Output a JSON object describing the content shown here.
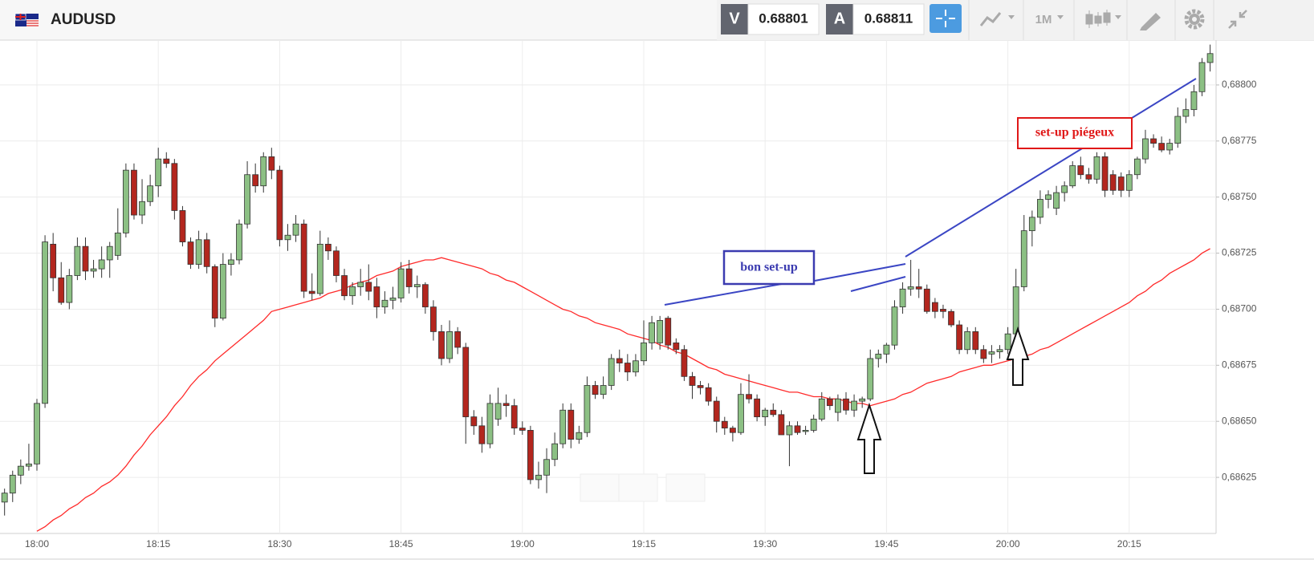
{
  "header": {
    "symbol": "AUDUSD",
    "sell": {
      "label": "V",
      "price": 0.68801
    },
    "buy": {
      "label": "A",
      "price": 0.68811
    },
    "timeframe": "1M"
  },
  "chart_data": {
    "type": "candlestick",
    "categories": [
      null,
      null,
      null,
      null,
      "18:00",
      null,
      null,
      null,
      null,
      null,
      null,
      null,
      null,
      null,
      null,
      null,
      null,
      null,
      null,
      "18:15",
      null,
      null,
      null,
      null,
      null,
      null,
      null,
      null,
      null,
      null,
      null,
      null,
      null,
      null,
      "18:30",
      null,
      null,
      null,
      null,
      null,
      null,
      null,
      null,
      null,
      null,
      null,
      null,
      null,
      null,
      "18:45",
      null,
      null,
      null,
      null,
      null,
      null,
      null,
      null,
      null,
      null,
      null,
      null,
      null,
      null,
      "19:00",
      null,
      null,
      null,
      null,
      null,
      null,
      null,
      null,
      null,
      null,
      null,
      null,
      null,
      null,
      "19:15",
      null,
      null,
      null,
      null,
      null,
      null,
      null,
      null,
      null,
      null,
      null,
      null,
      null,
      null,
      "19:30",
      null,
      null,
      null,
      null,
      null,
      null,
      null,
      null,
      null,
      null,
      null,
      null,
      null,
      null,
      "19:45",
      null,
      null,
      null,
      null,
      null,
      null,
      null,
      null,
      null,
      null,
      null,
      null,
      null,
      null,
      "20:00",
      null,
      null,
      null,
      null,
      null,
      null,
      null,
      null,
      null,
      null,
      null,
      null,
      null,
      null,
      "20:15",
      null,
      null,
      null,
      null,
      null,
      null,
      null,
      null,
      null,
      null
    ],
    "open": [
      0.68614,
      0.68618,
      0.68626,
      0.6863,
      0.68631,
      0.68658,
      0.68729,
      0.68714,
      0.68703,
      0.68715,
      0.68728,
      0.68717,
      0.68718,
      0.68722,
      0.68724,
      0.68734,
      0.68762,
      0.68742,
      0.68748,
      0.68755,
      0.68767,
      0.68765,
      0.68744,
      0.6873,
      0.6872,
      0.68731,
      0.68719,
      0.68696,
      0.6872,
      0.68722,
      0.68738,
      0.6876,
      0.68755,
      0.68768,
      0.68762,
      0.68731,
      0.68733,
      0.68738,
      0.68708,
      0.68707,
      0.68729,
      0.68726,
      0.68715,
      0.68706,
      0.6871,
      0.68712,
      0.6871,
      0.68701,
      0.68704,
      0.68705,
      0.68718,
      0.6871,
      0.68711,
      0.68701,
      0.6869,
      0.68678,
      0.6869,
      0.68683,
      0.68652,
      0.68648,
      0.6864,
      0.68651,
      0.68658,
      0.68657,
      0.68647,
      0.68646,
      0.68624,
      0.68626,
      0.68633,
      0.6864,
      0.68655,
      0.68642,
      0.68645,
      0.68666,
      0.68662,
      0.68666,
      0.68678,
      0.68676,
      0.68672,
      0.68677,
      0.68685,
      0.68685,
      0.68696,
      0.68685,
      0.68682,
      0.6867,
      0.68666,
      0.68665,
      0.68659,
      0.6865,
      0.68647,
      0.68645,
      0.68662,
      0.6866,
      0.68652,
      0.68655,
      0.68653,
      0.68644,
      0.68648,
      0.68646,
      0.68646,
      0.68651,
      0.6866,
      0.68654,
      0.6866,
      0.68655,
      0.68659,
      0.6866,
      0.68678,
      0.6868,
      0.68684,
      0.68701,
      0.68709,
      0.6871,
      0.68709,
      0.68703,
      0.687,
      0.68699,
      0.68693,
      0.68682,
      0.6869,
      0.68682,
      0.6868,
      0.68681,
      0.68682,
      0.68689,
      0.6871,
      0.68735,
      0.68741,
      0.68749,
      0.68745,
      0.68752,
      0.68755,
      0.68764,
      0.6876,
      0.68758,
      0.68768,
      0.6876,
      0.68759,
      0.68753,
      0.6876,
      0.68767,
      0.68776,
      0.68774,
      0.68771,
      0.68774,
      0.68786,
      0.68789,
      0.68797,
      0.6881
    ],
    "high": [
      0.6862,
      0.68628,
      0.68633,
      0.6864,
      0.6866,
      0.68733,
      0.68734,
      0.68721,
      0.68718,
      0.68732,
      0.68732,
      0.68722,
      0.68728,
      0.6873,
      0.68745,
      0.68765,
      0.68765,
      0.68758,
      0.6876,
      0.68772,
      0.6877,
      0.68767,
      0.68746,
      0.68732,
      0.68735,
      0.68734,
      0.6872,
      0.68725,
      0.68725,
      0.6874,
      0.68766,
      0.68765,
      0.6877,
      0.68772,
      0.68764,
      0.68738,
      0.68742,
      0.6874,
      0.68716,
      0.68735,
      0.68732,
      0.68728,
      0.68718,
      0.68712,
      0.68718,
      0.6872,
      0.68714,
      0.68708,
      0.6871,
      0.68721,
      0.68722,
      0.68715,
      0.68712,
      0.68704,
      0.68693,
      0.68695,
      0.68692,
      0.68685,
      0.68655,
      0.68652,
      0.68662,
      0.68665,
      0.68662,
      0.6866,
      0.6865,
      0.68648,
      0.68632,
      0.68638,
      0.68645,
      0.68658,
      0.68658,
      0.68648,
      0.6867,
      0.68668,
      0.6867,
      0.6868,
      0.68682,
      0.6868,
      0.6868,
      0.68695,
      0.68697,
      0.68697,
      0.68697,
      0.68687,
      0.68684,
      0.68672,
      0.68668,
      0.68667,
      0.68661,
      0.68652,
      0.68648,
      0.68667,
      0.68671,
      0.68662,
      0.68656,
      0.68658,
      0.68655,
      0.6865,
      0.6865,
      0.68648,
      0.68653,
      0.68663,
      0.68661,
      0.68662,
      0.68663,
      0.68662,
      0.68661,
      0.68682,
      0.68682,
      0.68685,
      0.68704,
      0.68712,
      0.68722,
      0.68718,
      0.68711,
      0.68705,
      0.68702,
      0.687,
      0.68695,
      0.68692,
      0.68692,
      0.68684,
      0.68684,
      0.68684,
      0.68692,
      0.68718,
      0.68742,
      0.68744,
      0.68753,
      0.68753,
      0.68755,
      0.68757,
      0.68766,
      0.68768,
      0.68763,
      0.6877,
      0.6877,
      0.68762,
      0.68761,
      0.68762,
      0.68768,
      0.6878,
      0.68778,
      0.68777,
      0.68776,
      0.6879,
      0.68794,
      0.688,
      0.68812,
      0.68818
    ],
    "low": [
      0.68608,
      0.68614,
      0.68622,
      0.68628,
      0.68628,
      0.68656,
      0.68708,
      0.68702,
      0.687,
      0.68713,
      0.68713,
      0.68714,
      0.68714,
      0.68714,
      0.68722,
      0.68732,
      0.6874,
      0.68738,
      0.68746,
      0.6875,
      0.68763,
      0.6874,
      0.68728,
      0.68718,
      0.68718,
      0.68716,
      0.68692,
      0.68695,
      0.68715,
      0.6872,
      0.68736,
      0.68752,
      0.68752,
      0.68758,
      0.68728,
      0.68726,
      0.6873,
      0.68705,
      0.68704,
      0.68706,
      0.68722,
      0.68712,
      0.68704,
      0.68702,
      0.68706,
      0.68704,
      0.68696,
      0.68698,
      0.687,
      0.68703,
      0.68707,
      0.68705,
      0.68698,
      0.68686,
      0.68675,
      0.68676,
      0.6868,
      0.6864,
      0.68644,
      0.68636,
      0.68638,
      0.68648,
      0.68652,
      0.68644,
      0.68644,
      0.68622,
      0.6862,
      0.68618,
      0.6863,
      0.68638,
      0.68638,
      0.6864,
      0.68643,
      0.6866,
      0.6866,
      0.68664,
      0.68672,
      0.68668,
      0.6867,
      0.68675,
      0.68682,
      0.68682,
      0.68682,
      0.6868,
      0.68668,
      0.6866,
      0.68662,
      0.68657,
      0.68645,
      0.68644,
      0.68641,
      0.68644,
      0.68658,
      0.6865,
      0.68648,
      0.68652,
      0.68644,
      0.6863,
      0.68644,
      0.68644,
      0.68645,
      0.6865,
      0.68655,
      0.6865,
      0.68653,
      0.68652,
      0.68656,
      0.68659,
      0.68674,
      0.68676,
      0.68682,
      0.68698,
      0.68706,
      0.68705,
      0.68698,
      0.68696,
      0.68696,
      0.68692,
      0.6868,
      0.6868,
      0.6868,
      0.68676,
      0.68676,
      0.68678,
      0.6868,
      0.68687,
      0.68708,
      0.68728,
      0.68738,
      0.68745,
      0.68742,
      0.68748,
      0.68754,
      0.68758,
      0.68756,
      0.68756,
      0.6875,
      0.68751,
      0.6875,
      0.6875,
      0.68758,
      0.68765,
      0.68772,
      0.6877,
      0.68769,
      0.68772,
      0.68783,
      0.68786,
      0.68795,
      0.68806
    ],
    "close": [
      0.68618,
      0.68626,
      0.6863,
      0.68631,
      0.68658,
      0.6873,
      0.68714,
      0.68703,
      0.68715,
      0.68728,
      0.68717,
      0.68718,
      0.68722,
      0.68728,
      0.68734,
      0.68762,
      0.68742,
      0.68748,
      0.68755,
      0.68767,
      0.68765,
      0.68744,
      0.6873,
      0.6872,
      0.68731,
      0.68719,
      0.68696,
      0.6872,
      0.68722,
      0.68738,
      0.6876,
      0.68755,
      0.68768,
      0.68762,
      0.68731,
      0.68733,
      0.68738,
      0.68708,
      0.68707,
      0.68729,
      0.68726,
      0.68715,
      0.68706,
      0.6871,
      0.68712,
      0.68708,
      0.68701,
      0.68704,
      0.68705,
      0.68718,
      0.6871,
      0.68711,
      0.68701,
      0.6869,
      0.68678,
      0.6869,
      0.68683,
      0.68652,
      0.68648,
      0.6864,
      0.68658,
      0.68658,
      0.68657,
      0.68647,
      0.68646,
      0.68624,
      0.68626,
      0.68633,
      0.6864,
      0.68655,
      0.68642,
      0.68645,
      0.68666,
      0.68662,
      0.68666,
      0.68678,
      0.68676,
      0.68672,
      0.68677,
      0.68685,
      0.68694,
      0.68695,
      0.68684,
      0.68682,
      0.6867,
      0.68666,
      0.68665,
      0.68659,
      0.6865,
      0.68647,
      0.68645,
      0.68662,
      0.6866,
      0.68652,
      0.68655,
      0.68653,
      0.68644,
      0.68648,
      0.68645,
      0.68646,
      0.68651,
      0.6866,
      0.68657,
      0.6866,
      0.68655,
      0.68659,
      0.6866,
      0.68678,
      0.6868,
      0.68684,
      0.68701,
      0.68709,
      0.6871,
      0.68709,
      0.68699,
      0.68699,
      0.68699,
      0.68693,
      0.68682,
      0.6869,
      0.68682,
      0.68678,
      0.68681,
      0.68682,
      0.68689,
      0.6871,
      0.68735,
      0.68741,
      0.68749,
      0.68751,
      0.68752,
      0.68755,
      0.68764,
      0.6876,
      0.68758,
      0.68768,
      0.68753,
      0.68753,
      0.68753,
      0.6876,
      0.68767,
      0.68776,
      0.68774,
      0.68771,
      0.68774,
      0.68786,
      0.68789,
      0.68797,
      0.6881,
      0.68814
    ],
    "up_color": "#8cc084",
    "down_color": "#b3261e",
    "ma": {
      "color": "#ff2a2a",
      "values": [
        null,
        null,
        null,
        null,
        0.68601,
        0.68603,
        0.68606,
        0.68608,
        0.68611,
        0.68613,
        0.68616,
        0.68618,
        0.68621,
        0.68623,
        0.68626,
        0.6863,
        0.68635,
        0.68639,
        0.68644,
        0.68648,
        0.68652,
        0.68657,
        0.68661,
        0.68666,
        0.6867,
        0.68673,
        0.68677,
        0.6868,
        0.68683,
        0.68686,
        0.68689,
        0.68692,
        0.68695,
        0.68699,
        0.687,
        0.68701,
        0.68702,
        0.68703,
        0.68704,
        0.68705,
        0.68707,
        0.68708,
        0.68709,
        0.68711,
        0.68712,
        0.68713,
        0.68715,
        0.68716,
        0.68717,
        0.68719,
        0.6872,
        0.68721,
        0.68722,
        0.68722,
        0.68723,
        0.68722,
        0.68721,
        0.6872,
        0.68719,
        0.68718,
        0.68716,
        0.68715,
        0.68713,
        0.68712,
        0.6871,
        0.68708,
        0.68706,
        0.68704,
        0.68702,
        0.687,
        0.68699,
        0.68697,
        0.68696,
        0.68694,
        0.68693,
        0.68692,
        0.68691,
        0.68689,
        0.68688,
        0.68687,
        0.68686,
        0.68684,
        0.68683,
        0.68681,
        0.6868,
        0.68678,
        0.68676,
        0.68674,
        0.68673,
        0.68671,
        0.6867,
        0.68669,
        0.68668,
        0.68667,
        0.68666,
        0.68665,
        0.68664,
        0.68663,
        0.68663,
        0.68662,
        0.68661,
        0.68661,
        0.6866,
        0.6866,
        0.68659,
        0.68658,
        0.68658,
        0.68657,
        0.68658,
        0.68659,
        0.6866,
        0.68662,
        0.68663,
        0.68665,
        0.68667,
        0.68668,
        0.68669,
        0.6867,
        0.68672,
        0.68673,
        0.68674,
        0.68675,
        0.68675,
        0.68676,
        0.68677,
        0.68678,
        0.68679,
        0.6868,
        0.68682,
        0.68683,
        0.68685,
        0.68687,
        0.68689,
        0.68691,
        0.68693,
        0.68695,
        0.68697,
        0.68699,
        0.68701,
        0.68703,
        0.68706,
        0.68708,
        0.68711,
        0.68713,
        0.68716,
        0.68718,
        0.6872,
        0.68722,
        0.68725,
        0.68727
      ]
    },
    "ylim": [
      0.686,
      0.6882
    ],
    "yticks": [
      {
        "value": 0.68625,
        "label": "0,68625"
      },
      {
        "value": 0.6865,
        "label": "0,68650"
      },
      {
        "value": 0.68675,
        "label": "0,68675"
      },
      {
        "value": 0.687,
        "label": "0,68700"
      },
      {
        "value": 0.68725,
        "label": "0,68725"
      },
      {
        "value": 0.6875,
        "label": "0,68750"
      },
      {
        "value": 0.68775,
        "label": "0,68775"
      },
      {
        "value": 0.688,
        "label": "0,68800"
      }
    ],
    "grid": true,
    "annotations": [
      "bon set-up",
      "set-up piégeux"
    ]
  }
}
